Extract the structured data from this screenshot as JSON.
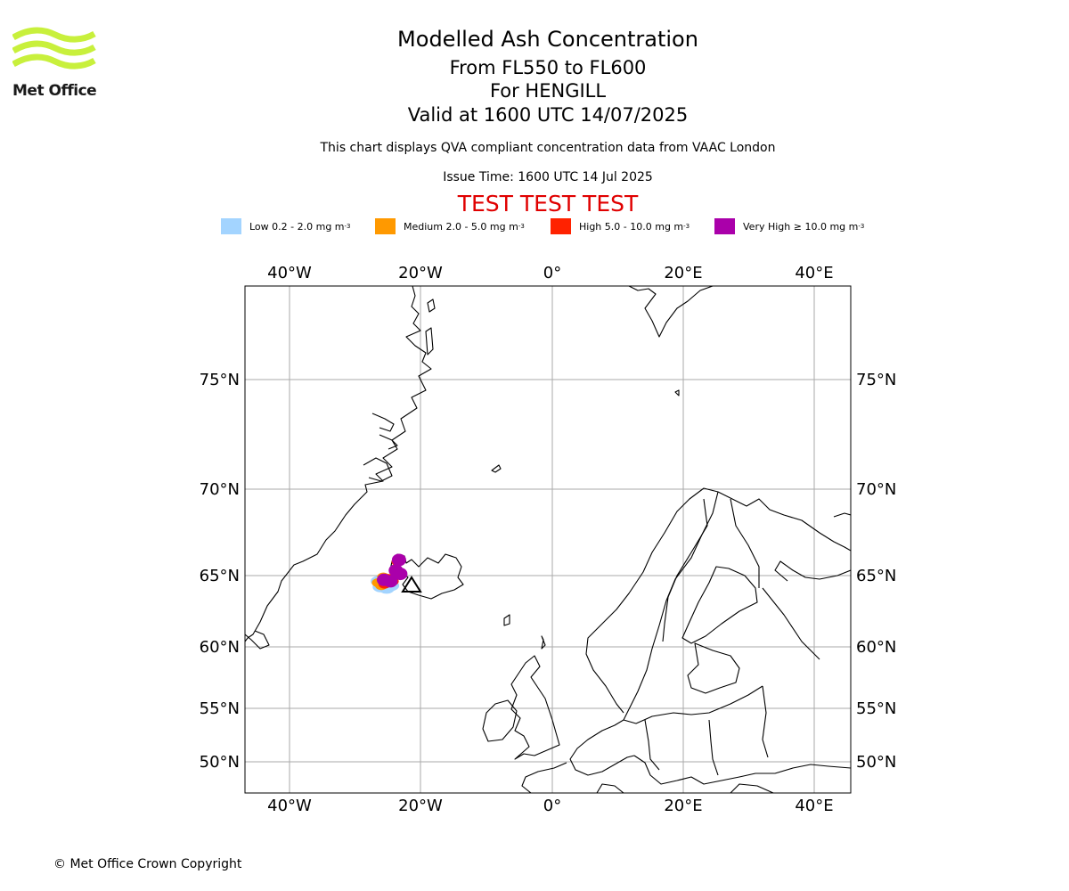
{
  "logo": {
    "name": "Met Office",
    "wave_color": "#c8f03c"
  },
  "titles": {
    "main": "Modelled Ash Concentration",
    "levels": "From FL550 to FL600",
    "volcano": "For HENGILL",
    "valid": "Valid at 1600 UTC 14/07/2025"
  },
  "subtitle": "This chart displays QVA compliant concentration data from VAAC London",
  "issue_time": "Issue Time: 1600 UTC 14 Jul 2025",
  "test_banner": "TEST TEST TEST",
  "legend": [
    {
      "label": "Low 0.2 - 2.0 mg m",
      "exp": "-3",
      "color": "#a3d4ff"
    },
    {
      "label": "Medium 2.0 - 5.0 mg m",
      "exp": "-3",
      "color": "#ff9900"
    },
    {
      "label": "High 5.0 - 10.0 mg m",
      "exp": "-3",
      "color": "#ff2200"
    },
    {
      "label": "Very High ≥ 10.0 mg m",
      "exp": "-3",
      "color": "#aa00aa"
    }
  ],
  "map": {
    "lon_labels": [
      "40°W",
      "20°W",
      "0°",
      "20°E",
      "40°E"
    ],
    "lat_labels": [
      "75°N",
      "70°N",
      "65°N",
      "60°N",
      "55°N",
      "50°N"
    ],
    "lon_range": [
      -46.8,
      45.6
    ],
    "lat_range": [
      48,
      80.5
    ],
    "grid_color": "#aaaaaa",
    "ash": [
      {
        "level": "Low",
        "color": "#a3d4ff",
        "points": [
          [
            -26.1,
            64.2
          ],
          [
            -25.2,
            64.1
          ],
          [
            -24.5,
            64.3
          ],
          [
            -26.4,
            64.6
          ]
        ]
      },
      {
        "level": "Medium",
        "color": "#ff9900",
        "points": [
          [
            -26.5,
            64.5
          ],
          [
            -25.7,
            64.9
          ],
          [
            -26.0,
            64.3
          ],
          [
            -24.9,
            64.8
          ]
        ]
      },
      {
        "level": "High",
        "color": "#ff2200",
        "points": [
          [
            -25.5,
            64.4
          ],
          [
            -24.3,
            64.6
          ],
          [
            -23.5,
            65.8
          ],
          [
            -25.0,
            64.8
          ]
        ]
      },
      {
        "level": "Very High",
        "color": "#aa00aa",
        "points": [
          [
            -25.6,
            64.7
          ],
          [
            -24.6,
            64.6
          ],
          [
            -23.8,
            65.3
          ],
          [
            -23.3,
            65.9
          ],
          [
            -23.1,
            65.1
          ]
        ]
      }
    ]
  },
  "copyright": "© Met Office Crown Copyright"
}
